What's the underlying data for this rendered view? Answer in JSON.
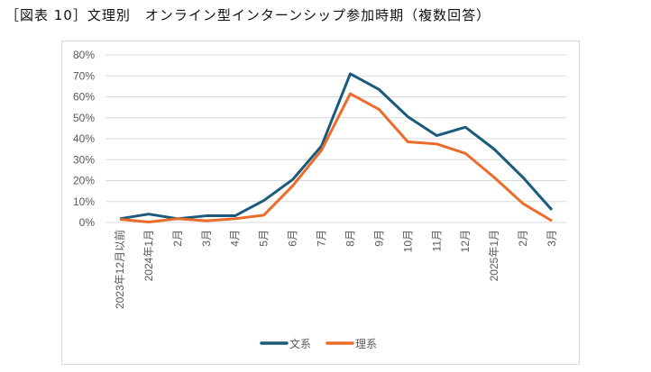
{
  "title": "［図表 10］文理別　オンライン型インターンシップ参加時期（複数回答）",
  "chart_data": {
    "type": "line",
    "categories": [
      "2023年12月以前",
      "2024年1月",
      "2月",
      "3月",
      "4月",
      "5月",
      "6月",
      "7月",
      "8月",
      "9月",
      "10月",
      "11月",
      "12月",
      "2025年1月",
      "2月",
      "3月"
    ],
    "ylim": [
      0,
      80
    ],
    "yticks": [
      "0%",
      "10%",
      "20%",
      "30%",
      "40%",
      "50%",
      "60%",
      "70%",
      "80%"
    ],
    "grid": true,
    "legend_position": "bottom",
    "series": [
      {
        "name": "文系",
        "color": "#1a5a7a",
        "values": [
          1.8,
          4,
          1.8,
          3.2,
          3.2,
          10.5,
          20.5,
          36.5,
          71,
          63.5,
          50.5,
          41.5,
          45.5,
          35,
          21.5,
          6
        ]
      },
      {
        "name": "理系",
        "color": "#ed6b2a",
        "values": [
          1.5,
          0.2,
          1.8,
          0.8,
          1.8,
          3.5,
          17.5,
          34.5,
          61.5,
          54,
          38.5,
          37.5,
          33,
          21.5,
          9,
          0.8
        ]
      }
    ]
  }
}
